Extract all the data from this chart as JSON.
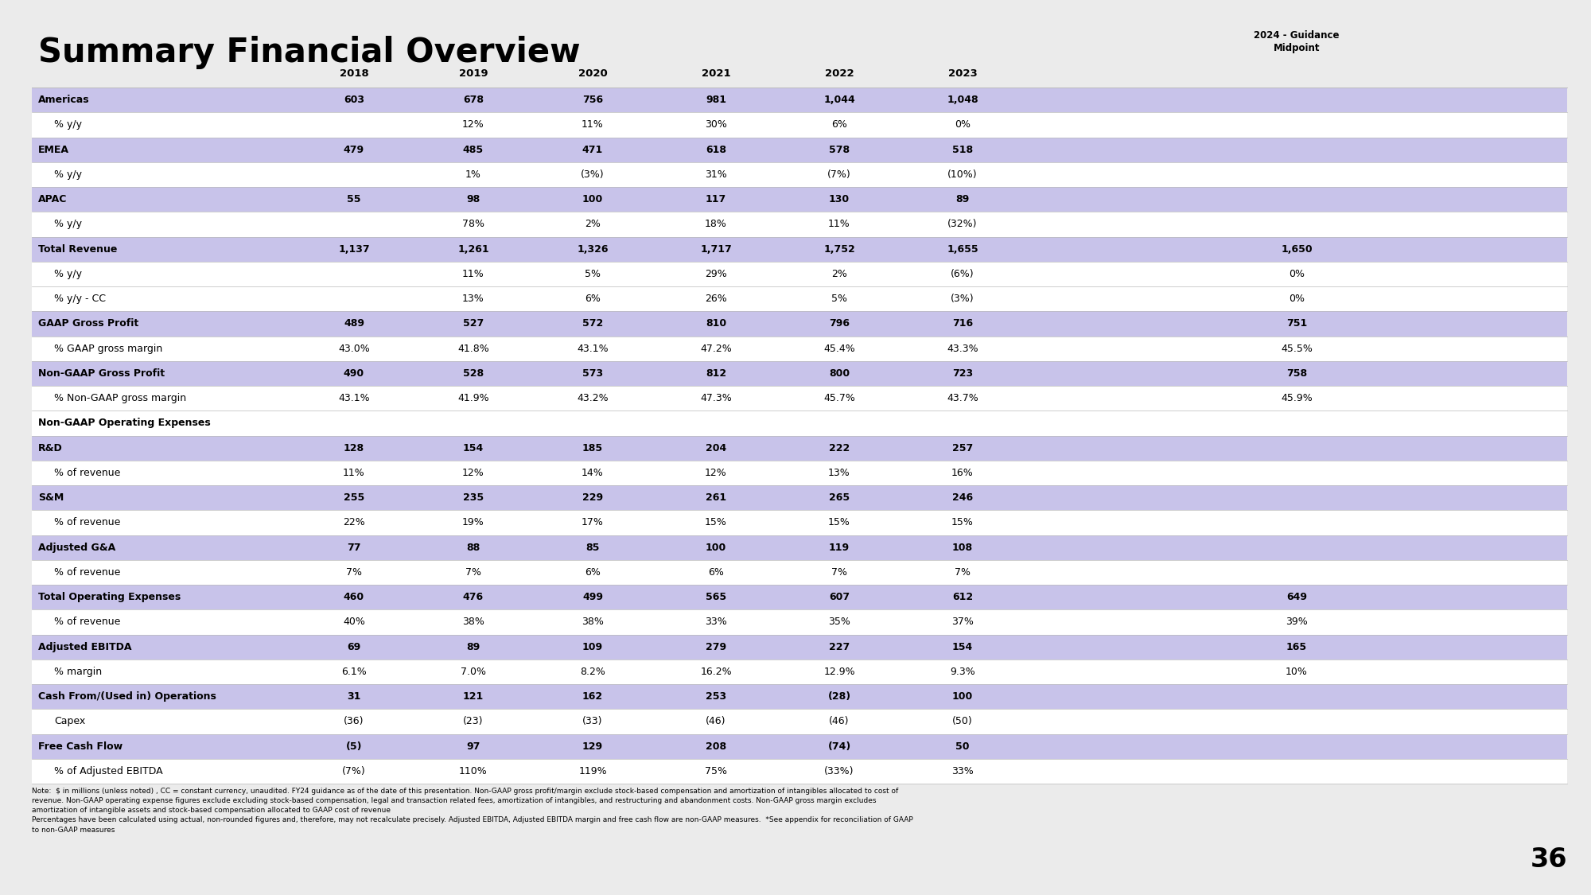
{
  "title": "Summary Financial Overview",
  "bg_color": "#ebebeb",
  "highlight_color": "#c8c3ea",
  "white_color": "#ffffff",
  "page_number": "36",
  "years": [
    "2018",
    "2019",
    "2020",
    "2021",
    "2022",
    "2023"
  ],
  "guidance_header": "2024 - Guidance\nMidpoint",
  "rows": [
    {
      "label": "Americas",
      "bold": true,
      "highlight": true,
      "indent": false,
      "values": [
        "603",
        "678",
        "756",
        "981",
        "1,044",
        "1,048",
        ""
      ]
    },
    {
      "label": "% y/y",
      "bold": false,
      "highlight": false,
      "indent": true,
      "values": [
        "",
        "12%",
        "11%",
        "30%",
        "6%",
        "0%",
        ""
      ]
    },
    {
      "label": "EMEA",
      "bold": true,
      "highlight": true,
      "indent": false,
      "values": [
        "479",
        "485",
        "471",
        "618",
        "578",
        "518",
        ""
      ]
    },
    {
      "label": "% y/y",
      "bold": false,
      "highlight": false,
      "indent": true,
      "values": [
        "",
        "1%",
        "(3%)",
        "31%",
        "(7%)",
        "(10%)",
        ""
      ]
    },
    {
      "label": "APAC",
      "bold": true,
      "highlight": true,
      "indent": false,
      "values": [
        "55",
        "98",
        "100",
        "117",
        "130",
        "89",
        ""
      ]
    },
    {
      "label": "% y/y",
      "bold": false,
      "highlight": false,
      "indent": true,
      "values": [
        "",
        "78%",
        "2%",
        "18%",
        "11%",
        "(32%)",
        ""
      ]
    },
    {
      "label": "Total Revenue",
      "bold": true,
      "highlight": true,
      "indent": false,
      "values": [
        "1,137",
        "1,261",
        "1,326",
        "1,717",
        "1,752",
        "1,655",
        "1,650"
      ]
    },
    {
      "label": "% y/y",
      "bold": false,
      "highlight": false,
      "indent": true,
      "values": [
        "",
        "11%",
        "5%",
        "29%",
        "2%",
        "(6%)",
        "0%"
      ]
    },
    {
      "label": "% y/y - CC",
      "bold": false,
      "highlight": false,
      "indent": true,
      "values": [
        "",
        "13%",
        "6%",
        "26%",
        "5%",
        "(3%)",
        "0%"
      ]
    },
    {
      "label": "GAAP Gross Profit",
      "bold": true,
      "highlight": true,
      "indent": false,
      "values": [
        "489",
        "527",
        "572",
        "810",
        "796",
        "716",
        "751"
      ]
    },
    {
      "label": "% GAAP gross margin",
      "bold": false,
      "highlight": false,
      "indent": true,
      "values": [
        "43.0%",
        "41.8%",
        "43.1%",
        "47.2%",
        "45.4%",
        "43.3%",
        "45.5%"
      ]
    },
    {
      "label": "Non-GAAP Gross Profit",
      "bold": true,
      "highlight": true,
      "indent": false,
      "values": [
        "490",
        "528",
        "573",
        "812",
        "800",
        "723",
        "758"
      ]
    },
    {
      "label": "% Non-GAAP gross margin",
      "bold": false,
      "highlight": false,
      "indent": true,
      "values": [
        "43.1%",
        "41.9%",
        "43.2%",
        "47.3%",
        "45.7%",
        "43.7%",
        "45.9%"
      ]
    },
    {
      "label": "Non-GAAP Operating Expenses",
      "bold": true,
      "highlight": false,
      "indent": false,
      "values": [
        "",
        "",
        "",
        "",
        "",
        "",
        ""
      ]
    },
    {
      "label": "R&D",
      "bold": true,
      "highlight": true,
      "indent": false,
      "values": [
        "128",
        "154",
        "185",
        "204",
        "222",
        "257",
        ""
      ]
    },
    {
      "label": "% of revenue",
      "bold": false,
      "highlight": false,
      "indent": true,
      "values": [
        "11%",
        "12%",
        "14%",
        "12%",
        "13%",
        "16%",
        ""
      ]
    },
    {
      "label": "S&M",
      "bold": true,
      "highlight": true,
      "indent": false,
      "values": [
        "255",
        "235",
        "229",
        "261",
        "265",
        "246",
        ""
      ]
    },
    {
      "label": "% of revenue",
      "bold": false,
      "highlight": false,
      "indent": true,
      "values": [
        "22%",
        "19%",
        "17%",
        "15%",
        "15%",
        "15%",
        ""
      ]
    },
    {
      "label": "Adjusted G&A",
      "bold": true,
      "highlight": true,
      "indent": false,
      "values": [
        "77",
        "88",
        "85",
        "100",
        "119",
        "108",
        ""
      ]
    },
    {
      "label": "% of revenue",
      "bold": false,
      "highlight": false,
      "indent": true,
      "values": [
        "7%",
        "7%",
        "6%",
        "6%",
        "7%",
        "7%",
        ""
      ]
    },
    {
      "label": "Total Operating Expenses",
      "bold": true,
      "highlight": true,
      "indent": false,
      "values": [
        "460",
        "476",
        "499",
        "565",
        "607",
        "612",
        "649"
      ]
    },
    {
      "label": "% of revenue",
      "bold": false,
      "highlight": false,
      "indent": true,
      "values": [
        "40%",
        "38%",
        "38%",
        "33%",
        "35%",
        "37%",
        "39%"
      ]
    },
    {
      "label": "Adjusted EBITDA",
      "bold": true,
      "highlight": true,
      "indent": false,
      "values": [
        "69",
        "89",
        "109",
        "279",
        "227",
        "154",
        "165"
      ]
    },
    {
      "label": "% margin",
      "bold": false,
      "highlight": false,
      "indent": true,
      "values": [
        "6.1%",
        "7.0%",
        "8.2%",
        "16.2%",
        "12.9%",
        "9.3%",
        "10%"
      ]
    },
    {
      "label": "Cash From/(Used in) Operations",
      "bold": true,
      "highlight": true,
      "indent": false,
      "values": [
        "31",
        "121",
        "162",
        "253",
        "(28)",
        "100",
        ""
      ]
    },
    {
      "label": "Capex",
      "bold": false,
      "highlight": false,
      "indent": true,
      "values": [
        "(36)",
        "(23)",
        "(33)",
        "(46)",
        "(46)",
        "(50)",
        ""
      ]
    },
    {
      "label": "Free Cash Flow",
      "bold": true,
      "highlight": true,
      "indent": false,
      "values": [
        "(5)",
        "97",
        "129",
        "208",
        "(74)",
        "50",
        ""
      ]
    },
    {
      "label": "% of Adjusted EBITDA",
      "bold": false,
      "highlight": false,
      "indent": true,
      "values": [
        "(7%)",
        "110%",
        "119%",
        "75%",
        "(33%)",
        "33%",
        ""
      ]
    }
  ],
  "footnote_bold": "Note: ",
  "footnote_text": " $ in millions (unless noted) , CC = constant currency, unaudited. FY24 guidance as of the date of this presentation. Non-GAAP gross profit/margin exclude stock-based compensation and amortization of intangibles allocated to cost of revenue. Non-GAAP operating expense figures exclude excluding stock-based compensation, legal and transaction related fees, amortization of intangibles, and restructuring and abandonment costs. Non-GAAP gross margin excludes amortization of intangible assets and stock-based compensation allocated to GAAP cost of revenue\nPercentages have been calculated using actual, non-rounded figures and, therefore, may not recalculate precisely. Adjusted EBITDA, Adjusted EBITDA margin and free cash flow are non-GAAP measures.  *See appendix for reconciliation of GAAP to non-GAAP measures"
}
